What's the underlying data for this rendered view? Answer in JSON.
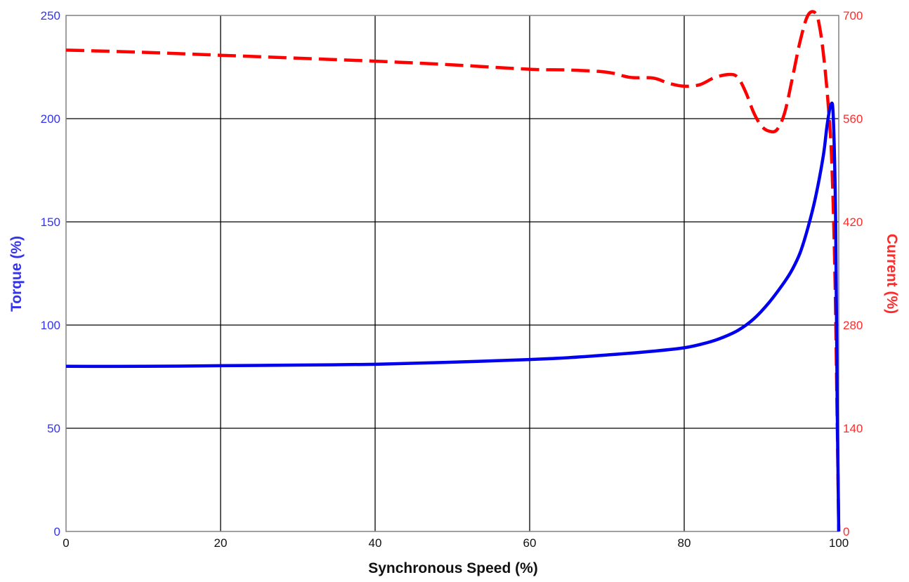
{
  "chart_data": {
    "type": "line",
    "xlabel": "Synchronous Speed (%)",
    "ylabel": "Torque (%)",
    "y2label": "Current (%)",
    "xlim": [
      0,
      100
    ],
    "ylim": [
      0,
      250
    ],
    "y2lim": [
      0,
      700
    ],
    "x_ticks": [
      "0",
      "20",
      "40",
      "60",
      "80",
      "100"
    ],
    "y_ticks": [
      "0",
      "50",
      "100",
      "150",
      "200",
      "250"
    ],
    "y2_ticks": [
      "0",
      "140",
      "280",
      "420",
      "560",
      "700"
    ],
    "grid": true,
    "colors": {
      "torque": "#0000ee",
      "current": "#ff0000",
      "grid": "#000000",
      "frame": "#808080"
    },
    "series": [
      {
        "axis": "left",
        "style": "solid",
        "x": [
          0,
          10,
          20,
          30,
          40,
          50,
          60,
          65,
          70,
          75,
          80,
          83,
          85,
          87,
          89,
          91,
          93,
          94,
          95,
          96,
          97,
          98,
          98.5,
          99,
          99.3,
          99.6,
          99.8,
          100
        ],
        "y": [
          80,
          80,
          80.3,
          80.6,
          81,
          82,
          83.3,
          84.2,
          85.5,
          87,
          89,
          91.5,
          94,
          97.5,
          103,
          111,
          121,
          127,
          135,
          147,
          162,
          182,
          197,
          207,
          200,
          150,
          60,
          0
        ]
      },
      {
        "axis": "right",
        "style": "dashed",
        "x": [
          0,
          10,
          20,
          30,
          40,
          50,
          60,
          65,
          70,
          73,
          76,
          78,
          80,
          82,
          84,
          86,
          87,
          88,
          89,
          90,
          91,
          92,
          93,
          94,
          95,
          96,
          97,
          97.6,
          98.2,
          98.7,
          99.1,
          99.5,
          99.8,
          100
        ],
        "y": [
          653,
          650,
          646,
          642,
          638,
          633,
          627,
          626,
          623,
          616,
          615,
          608,
          604,
          606,
          616,
          620,
          615,
          595,
          568,
          550,
          543,
          545,
          568,
          615,
          665,
          700,
          703,
          680,
          630,
          570,
          500,
          350,
          150,
          0
        ]
      }
    ]
  }
}
